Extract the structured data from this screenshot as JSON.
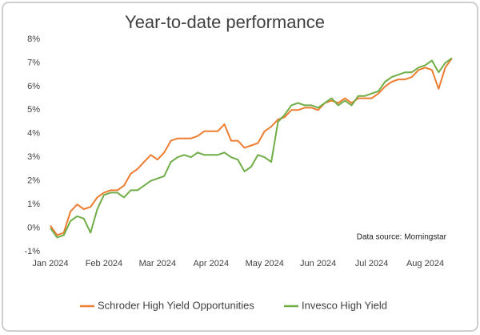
{
  "chart_data": {
    "type": "line",
    "title": "Year-to-date performance",
    "annotation": "Data source: Morningstar",
    "categories": [
      "Jan 2024",
      null,
      null,
      null,
      null,
      null,
      null,
      null,
      "Feb 2024",
      null,
      null,
      null,
      null,
      null,
      null,
      null,
      "Mar 2024",
      null,
      null,
      null,
      null,
      null,
      null,
      null,
      "Apr 2024",
      null,
      null,
      null,
      null,
      null,
      null,
      null,
      "May 2024",
      null,
      null,
      null,
      null,
      null,
      null,
      null,
      "Jun 2024",
      null,
      null,
      null,
      null,
      null,
      null,
      null,
      "Jul 2024",
      null,
      null,
      null,
      null,
      null,
      null,
      null,
      "Aug 2024",
      null,
      null,
      null,
      null
    ],
    "series": [
      {
        "name": "Schroder High Yield Opportunities",
        "color": "#ed7d31",
        "values": [
          0.1,
          -0.3,
          -0.2,
          0.7,
          1.0,
          0.8,
          0.9,
          1.3,
          1.5,
          1.6,
          1.6,
          1.8,
          2.3,
          2.5,
          2.8,
          3.1,
          2.9,
          3.2,
          3.7,
          3.8,
          3.8,
          3.8,
          3.9,
          4.1,
          4.1,
          4.1,
          4.4,
          3.7,
          3.7,
          3.4,
          3.5,
          3.6,
          4.1,
          4.3,
          4.6,
          4.7,
          5.0,
          5.0,
          5.1,
          5.1,
          5.0,
          5.3,
          5.4,
          5.3,
          5.5,
          5.3,
          5.5,
          5.5,
          5.5,
          5.7,
          6.0,
          6.2,
          6.3,
          6.3,
          6.4,
          6.7,
          6.8,
          6.7,
          5.9,
          6.8,
          7.2
        ]
      },
      {
        "name": "Invesco High Yield",
        "color": "#70ad47",
        "values": [
          0.0,
          -0.4,
          -0.3,
          0.3,
          0.5,
          0.4,
          -0.2,
          0.8,
          1.4,
          1.5,
          1.5,
          1.3,
          1.6,
          1.6,
          1.8,
          2.0,
          2.1,
          2.2,
          2.8,
          3.0,
          3.1,
          3.0,
          3.2,
          3.1,
          3.1,
          3.1,
          3.2,
          3.0,
          2.9,
          2.4,
          2.6,
          3.1,
          3.0,
          2.8,
          4.5,
          4.8,
          5.2,
          5.3,
          5.2,
          5.2,
          5.1,
          5.3,
          5.5,
          5.2,
          5.4,
          5.2,
          5.6,
          5.6,
          5.7,
          5.8,
          6.2,
          6.4,
          6.5,
          6.6,
          6.6,
          6.8,
          6.9,
          7.1,
          6.6,
          7.0,
          7.2
        ]
      }
    ],
    "ylim": [
      -1,
      8
    ],
    "yticks": [
      {
        "value": -1,
        "label": "-1%"
      },
      {
        "value": 0,
        "label": "0%"
      },
      {
        "value": 1,
        "label": "1%"
      },
      {
        "value": 2,
        "label": "2%"
      },
      {
        "value": 3,
        "label": "3%"
      },
      {
        "value": 4,
        "label": "4%"
      },
      {
        "value": 5,
        "label": "5%"
      },
      {
        "value": 6,
        "label": "6%"
      },
      {
        "value": 7,
        "label": "7%"
      },
      {
        "value": 8,
        "label": "8%"
      }
    ],
    "grid": false,
    "legend": "bottom"
  }
}
